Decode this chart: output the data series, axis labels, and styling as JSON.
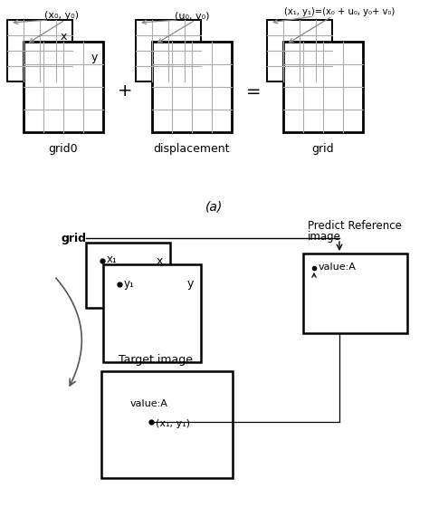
{
  "fig_width": 4.74,
  "fig_height": 5.6,
  "dpi": 100,
  "bg_color": "#ffffff",
  "label_a": "(a)",
  "part_a": {
    "grid0_label": "grid0",
    "displacement_label": "displacement",
    "grid_label": "grid",
    "annotation_grid0": "(x₀, y₀)",
    "annotation_disp": "(u₀, v₀)",
    "annotation_grid": "(x₁, y₁)=(x₀ + u₀, y₀+ v₀)",
    "plus_sign": "+",
    "equals_sign": "=",
    "x_label": "x",
    "y_label": "y",
    "grid_color": "#aaaaaa",
    "box_color": "#000000"
  },
  "part_b": {
    "grid_label": "grid",
    "predict_ref_line1": "Predict Reference",
    "predict_ref_line2": "image",
    "target_label": "Target image",
    "x1_label": "x₁",
    "y1_label": "y₁",
    "x_label": "x",
    "y_label": "y",
    "value_a_label1": "value:A",
    "value_a_label2": "value:A",
    "coords_label": "(x₁, y₁)",
    "box_color": "#000000",
    "dot_color": "#000000"
  }
}
